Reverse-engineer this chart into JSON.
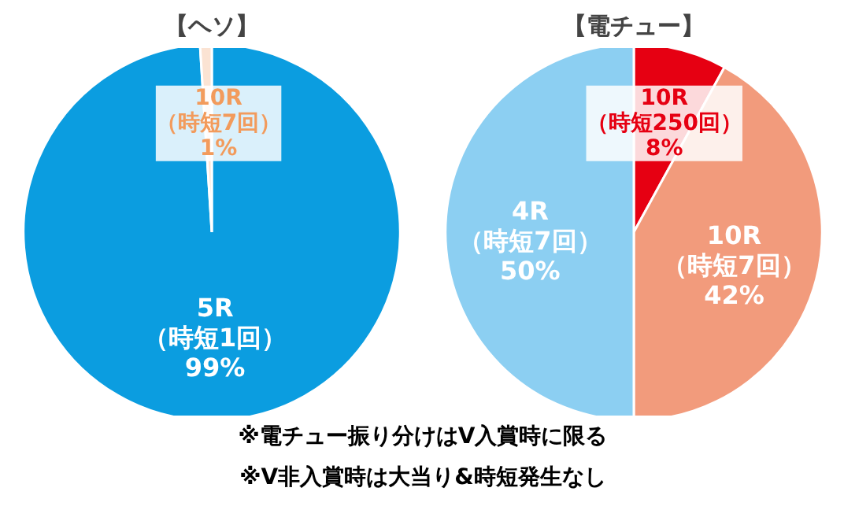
{
  "chart_data": [
    {
      "type": "pie",
      "title": "【ヘソ】",
      "categories": [
        "5R\n（時短1回）",
        "10R\n（時短7回）"
      ],
      "values": [
        99,
        1
      ],
      "colors": [
        "#0b9de0",
        "#fbe3d3"
      ],
      "value_labels": [
        "99%",
        "1%"
      ],
      "annotations": [
        "※電チュー振り分けはV入賞時に限る",
        "※V非入賞時は大当り&時短発生なし"
      ]
    },
    {
      "type": "pie",
      "title": "【電チュー】",
      "categories": [
        "10R\n（時短250回）",
        "10R\n（時短7回）",
        "4R\n（時短7回）"
      ],
      "values": [
        8,
        42,
        50
      ],
      "colors": [
        "#e60012",
        "#f29b7c",
        "#8ccff2"
      ],
      "value_labels": [
        "8%",
        "42%",
        "50%"
      ]
    }
  ]
}
